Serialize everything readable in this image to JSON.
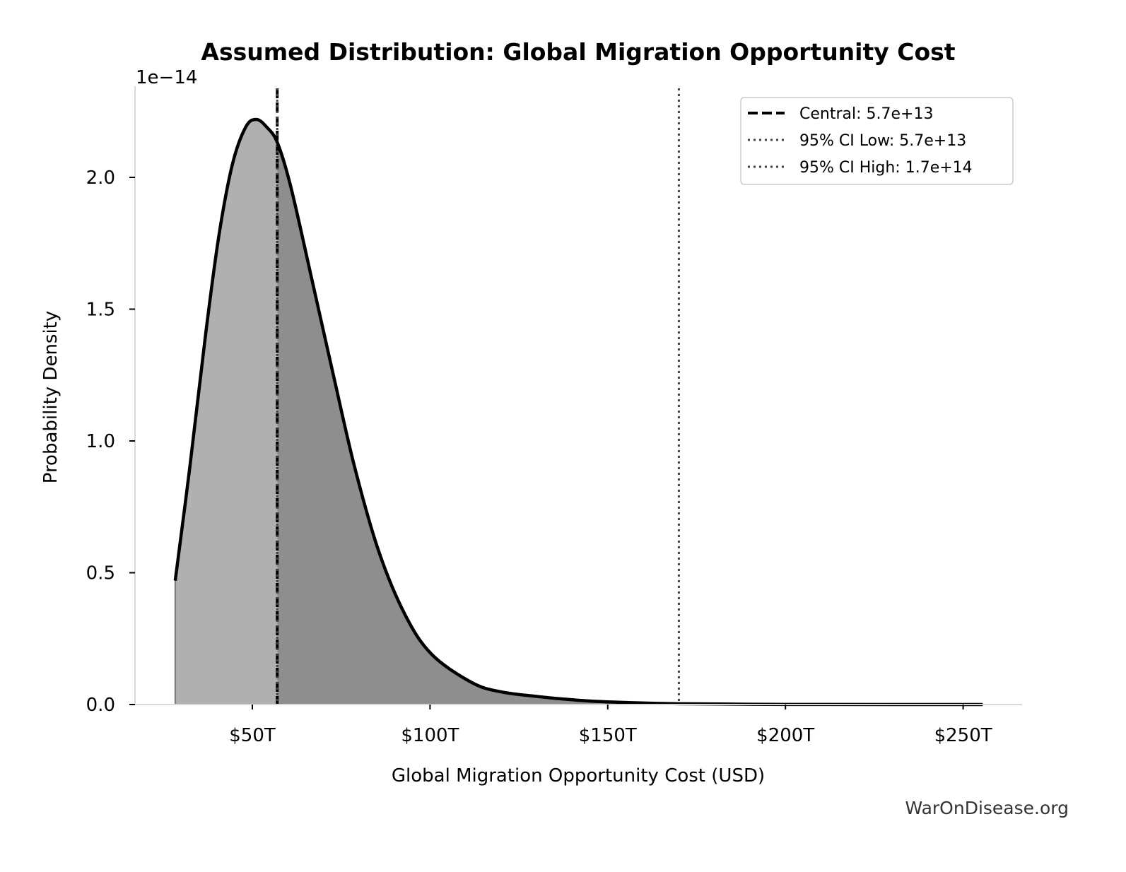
{
  "chart_data": {
    "type": "area",
    "title": "Assumed Distribution: Global Migration Opportunity Cost",
    "xlabel": "Global Migration Opportunity Cost (USD)",
    "ylabel": "Probability Density",
    "y_scale_label": "1e−14",
    "x_unit": "trillion USD",
    "xlim": [
      17,
      266
    ],
    "ylim": [
      0,
      2.34
    ],
    "x_ticks": [
      {
        "value": 50,
        "label": "$50T"
      },
      {
        "value": 100,
        "label": "$100T"
      },
      {
        "value": 150,
        "label": "$150T"
      },
      {
        "value": 200,
        "label": "$200T"
      },
      {
        "value": 250,
        "label": "$250T"
      }
    ],
    "y_ticks": [
      {
        "value": 0,
        "label": "0.0"
      },
      {
        "value": 0.5,
        "label": "0.5"
      },
      {
        "value": 1.0,
        "label": "1.0"
      },
      {
        "value": 1.5,
        "label": "1.5"
      },
      {
        "value": 2.0,
        "label": "2.0"
      }
    ],
    "grid": false,
    "series": [
      {
        "x": [
          28.3,
          32.4,
          36.9,
          40.6,
          44.4,
          48.1,
          51.1,
          54.1,
          57.1,
          60.9,
          66.8,
          72.8,
          78.8,
          85.6,
          93.0,
          100.5,
          111.8,
          120,
          130.5,
          140,
          150,
          170,
          200,
          230,
          255.5
        ],
        "y": [
          0.47,
          0.9,
          1.41,
          1.78,
          2.05,
          2.19,
          2.22,
          2.19,
          2.13,
          1.96,
          1.61,
          1.25,
          0.9,
          0.58,
          0.34,
          0.19,
          0.083,
          0.048,
          0.03,
          0.018,
          0.01,
          0.003,
          0.0005,
          0.0001,
          0.0
        ]
      }
    ],
    "shading": {
      "below_central_color": "#b0b0b0",
      "above_central_color": "#8e8e8e"
    },
    "reference_lines": [
      {
        "label": "Central: 5.7e+13",
        "value": 57,
        "style": "dashed",
        "color": "#000000"
      },
      {
        "label": "95% CI Low: 5.7e+13",
        "value": 57,
        "style": "dotted",
        "color": "#444444"
      },
      {
        "label": "95% CI High: 1.7e+14",
        "value": 170,
        "style": "dotted",
        "color": "#444444"
      }
    ],
    "legend_position": "top-right"
  },
  "watermark": "WarOnDisease.org"
}
